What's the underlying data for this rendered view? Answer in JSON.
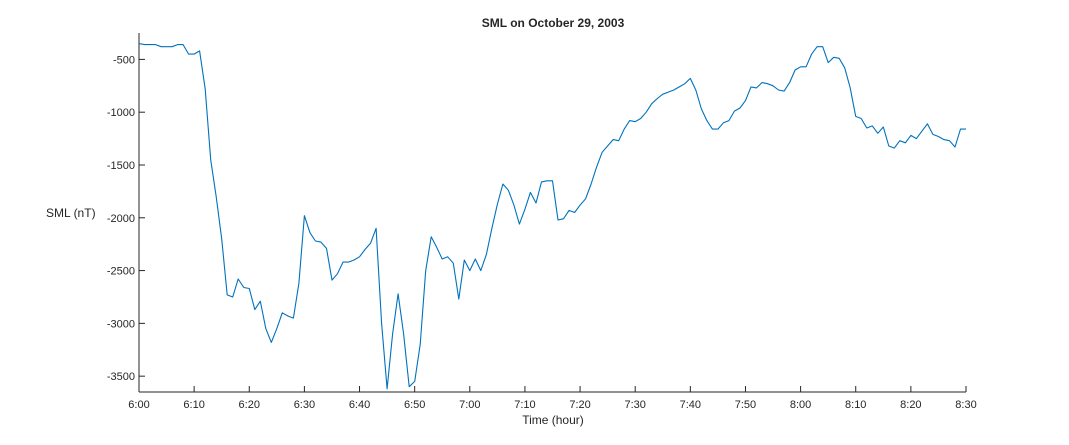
{
  "chart_data": {
    "type": "line",
    "title": "SML on October 29, 2003",
    "xlabel": "Time (hour)",
    "ylabel": "SML (nT)",
    "xlim": [
      "6:00",
      "8:30"
    ],
    "ylim": [
      -3650,
      -250
    ],
    "x_ticks": [
      "6:00",
      "6:10",
      "6:20",
      "6:30",
      "6:40",
      "6:50",
      "7:00",
      "7:10",
      "7:20",
      "7:30",
      "7:40",
      "7:50",
      "8:00",
      "8:10",
      "8:20",
      "8:30"
    ],
    "y_ticks": [
      -500,
      -1000,
      -1500,
      -2000,
      -2500,
      -3000,
      -3500
    ],
    "grid": false,
    "box": "left-bottom",
    "series": [
      {
        "color": "#0072BD",
        "x": [
          "6:00",
          "6:01",
          "6:02",
          "6:03",
          "6:04",
          "6:05",
          "6:06",
          "6:07",
          "6:08",
          "6:09",
          "6:10",
          "6:11",
          "6:12",
          "6:13",
          "6:14",
          "6:15",
          "6:16",
          "6:17",
          "6:18",
          "6:19",
          "6:20",
          "6:21",
          "6:22",
          "6:23",
          "6:24",
          "6:25",
          "6:26",
          "6:27",
          "6:28",
          "6:29",
          "6:30",
          "6:31",
          "6:32",
          "6:33",
          "6:34",
          "6:35",
          "6:36",
          "6:37",
          "6:38",
          "6:39",
          "6:40",
          "6:41",
          "6:42",
          "6:43",
          "6:44",
          "6:45",
          "6:46",
          "6:47",
          "6:48",
          "6:49",
          "6:50",
          "6:51",
          "6:52",
          "6:53",
          "6:54",
          "6:55",
          "6:56",
          "6:57",
          "6:58",
          "6:59",
          "7:00",
          "7:01",
          "7:02",
          "7:03",
          "7:04",
          "7:05",
          "7:06",
          "7:07",
          "7:08",
          "7:09",
          "7:10",
          "7:11",
          "7:12",
          "7:13",
          "7:14",
          "7:15",
          "7:16",
          "7:17",
          "7:18",
          "7:19",
          "7:20",
          "7:21",
          "7:22",
          "7:23",
          "7:24",
          "7:25",
          "7:26",
          "7:27",
          "7:28",
          "7:29",
          "7:30",
          "7:31",
          "7:32",
          "7:33",
          "7:34",
          "7:35",
          "7:36",
          "7:37",
          "7:38",
          "7:39",
          "7:40",
          "7:41",
          "7:42",
          "7:43",
          "7:44",
          "7:45",
          "7:46",
          "7:47",
          "7:48",
          "7:49",
          "7:50",
          "7:51",
          "7:52",
          "7:53",
          "7:54",
          "7:55",
          "7:56",
          "7:57",
          "7:58",
          "7:59",
          "8:00",
          "8:01",
          "8:02",
          "8:03",
          "8:04",
          "8:05",
          "8:06",
          "8:07",
          "8:08",
          "8:09",
          "8:10",
          "8:11",
          "8:12",
          "8:13",
          "8:14",
          "8:15",
          "8:16",
          "8:17",
          "8:18",
          "8:19",
          "8:20",
          "8:21",
          "8:22",
          "8:23",
          "8:24",
          "8:25",
          "8:26",
          "8:27",
          "8:28",
          "8:29",
          "8:30"
        ],
        "y": [
          -350,
          -360,
          -360,
          -360,
          -380,
          -380,
          -380,
          -360,
          -360,
          -450,
          -450,
          -420,
          -780,
          -1450,
          -1800,
          -2200,
          -2730,
          -2750,
          -2580,
          -2660,
          -2670,
          -2870,
          -2790,
          -3050,
          -3180,
          -3050,
          -2900,
          -2930,
          -2950,
          -2620,
          -1980,
          -2140,
          -2220,
          -2230,
          -2290,
          -2590,
          -2530,
          -2420,
          -2420,
          -2400,
          -2370,
          -2300,
          -2240,
          -2100,
          -3000,
          -3620,
          -3100,
          -2720,
          -3100,
          -3600,
          -3550,
          -3200,
          -2500,
          -2180,
          -2280,
          -2390,
          -2370,
          -2430,
          -2770,
          -2400,
          -2500,
          -2390,
          -2500,
          -2350,
          -2100,
          -1870,
          -1680,
          -1740,
          -1880,
          -2060,
          -1920,
          -1760,
          -1860,
          -1660,
          -1650,
          -1650,
          -2020,
          -2010,
          -1930,
          -1950,
          -1880,
          -1820,
          -1680,
          -1520,
          -1380,
          -1320,
          -1260,
          -1270,
          -1160,
          -1080,
          -1090,
          -1060,
          -1000,
          -920,
          -870,
          -830,
          -810,
          -790,
          -760,
          -730,
          -680,
          -790,
          -970,
          -1080,
          -1160,
          -1160,
          -1100,
          -1080,
          -990,
          -960,
          -890,
          -760,
          -770,
          -720,
          -730,
          -750,
          -790,
          -800,
          -720,
          -600,
          -570,
          -570,
          -450,
          -380,
          -380,
          -530,
          -480,
          -490,
          -580,
          -770,
          -1040,
          -1060,
          -1150,
          -1130,
          -1200,
          -1140,
          -1320,
          -1340,
          -1270,
          -1290,
          -1220,
          -1250,
          -1180,
          -1110,
          -1210,
          -1230,
          -1260,
          -1270,
          -1330,
          -1160,
          -1160
        ]
      }
    ]
  }
}
